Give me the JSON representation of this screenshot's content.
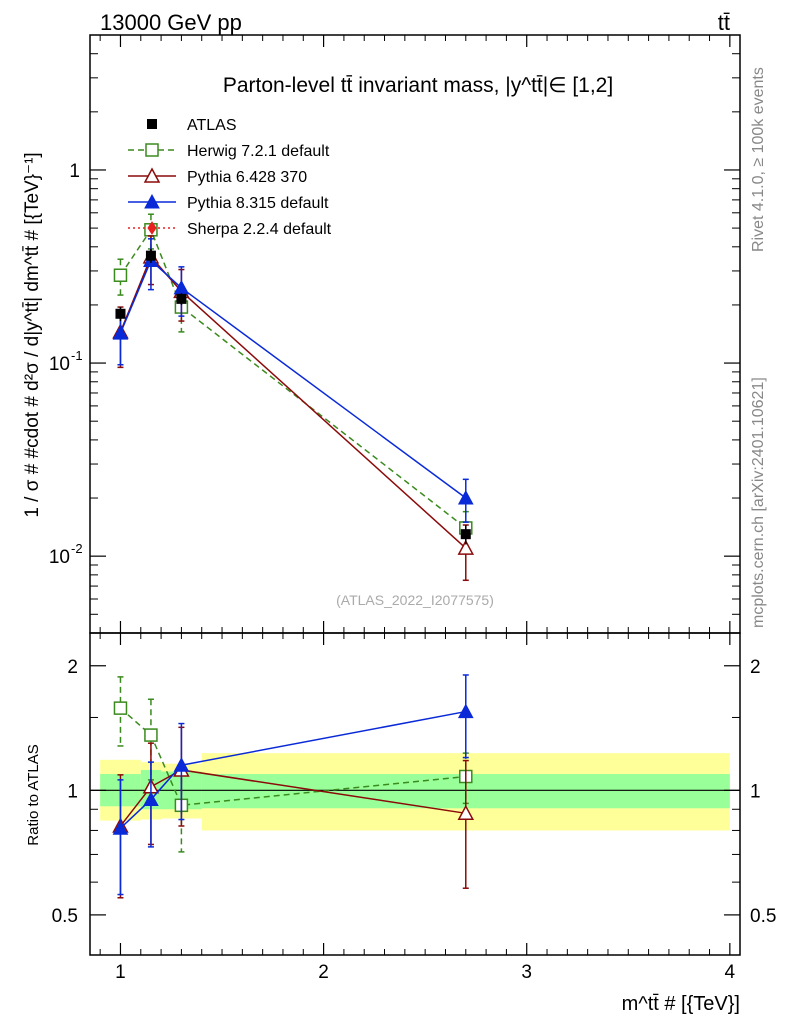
{
  "header": {
    "energy_label": "13000 GeV pp",
    "process_label": "tt̄"
  },
  "side_labels": {
    "rivet": "Rivet 4.1.0, ≥ 100k events",
    "mcplots": "mcplots.cern.ch [arXiv:2401.10621]"
  },
  "chart_data": {
    "type": "line",
    "title": "Parton-level tt̄ invariant mass, |y^tt̄|∈ [1,2]",
    "analysis_id": "(ATLAS_2022_I2077575)",
    "xlabel": "m^tt̄ # [{TeV}]",
    "ylabel": "1 / σ # #cdot # d²σ / d|y^tt̄| dm^tt̄ # [{TeV}⁻¹]",
    "ratio_ylabel": "Ratio to ATLAS",
    "xlim": [
      0.85,
      4.05
    ],
    "ylim": [
      0.004,
      5.0
    ],
    "ratio_ylim": [
      0.4,
      2.4
    ],
    "x_ticks": [
      "1",
      "2",
      "3",
      "4"
    ],
    "y_ticks": [
      "1",
      "10^-1",
      "10^-2"
    ],
    "ratio_y_ticks": [
      "2",
      "1",
      "0.5"
    ],
    "bins": [
      [
        0.9,
        1.1
      ],
      [
        1.1,
        1.2
      ],
      [
        1.2,
        1.4
      ],
      [
        1.4,
        4.0
      ]
    ],
    "data": {
      "name": "ATLAS",
      "x": [
        1.0,
        1.15,
        1.3,
        2.7
      ],
      "y": [
        0.18,
        0.36,
        0.215,
        0.013
      ],
      "yerr": [
        0.015,
        0.03,
        0.015,
        0.0015
      ],
      "band_stat": [
        [
          0.915,
          1.095
        ],
        [
          0.9,
          1.12
        ],
        [
          0.9,
          1.11
        ],
        [
          0.905,
          1.095
        ]
      ],
      "band_total": [
        [
          0.845,
          1.185
        ],
        [
          0.85,
          1.17
        ],
        [
          0.855,
          1.16
        ],
        [
          0.8,
          1.23
        ]
      ]
    },
    "series": [
      {
        "name": "Herwig 7.2.1 default",
        "color": "#3a8a1e",
        "style": "dashed",
        "marker": "open-square",
        "x": [
          1.0,
          1.15,
          1.3,
          2.7
        ],
        "y": [
          0.285,
          0.49,
          0.195,
          0.014
        ],
        "yerr": [
          0.06,
          0.1,
          0.05,
          0.003
        ],
        "ratio": [
          1.58,
          1.36,
          0.92,
          1.08
        ],
        "ratio_err": [
          0.3,
          0.3,
          0.21,
          0.15
        ]
      },
      {
        "name": "Pythia 6.428 370",
        "color": "#8b0a0a",
        "style": "solid",
        "marker": "open-triangle",
        "x": [
          1.0,
          1.15,
          1.3,
          2.7
        ],
        "y": [
          0.145,
          0.355,
          0.235,
          0.011
        ],
        "yerr": [
          0.05,
          0.1,
          0.07,
          0.0035
        ],
        "ratio": [
          0.82,
          1.02,
          1.12,
          0.88
        ],
        "ratio_err": [
          0.27,
          0.28,
          0.3,
          0.3
        ]
      },
      {
        "name": "Pythia 8.315 default",
        "color": "#0a2ad8",
        "style": "solid",
        "marker": "filled-triangle",
        "x": [
          1.0,
          1.15,
          1.3,
          2.7
        ],
        "y": [
          0.143,
          0.34,
          0.245,
          0.02
        ],
        "yerr": [
          0.045,
          0.1,
          0.07,
          0.005
        ],
        "ratio": [
          0.81,
          0.95,
          1.15,
          1.55
        ],
        "ratio_err": [
          0.25,
          0.22,
          0.3,
          0.35
        ]
      },
      {
        "name": "Sherpa 2.2.4 default",
        "color": "#e82020",
        "style": "dotted",
        "marker": "filled-diamond",
        "x": [],
        "y": [],
        "yerr": [],
        "ratio": [],
        "ratio_err": []
      }
    ],
    "legend_position": "top-left"
  }
}
